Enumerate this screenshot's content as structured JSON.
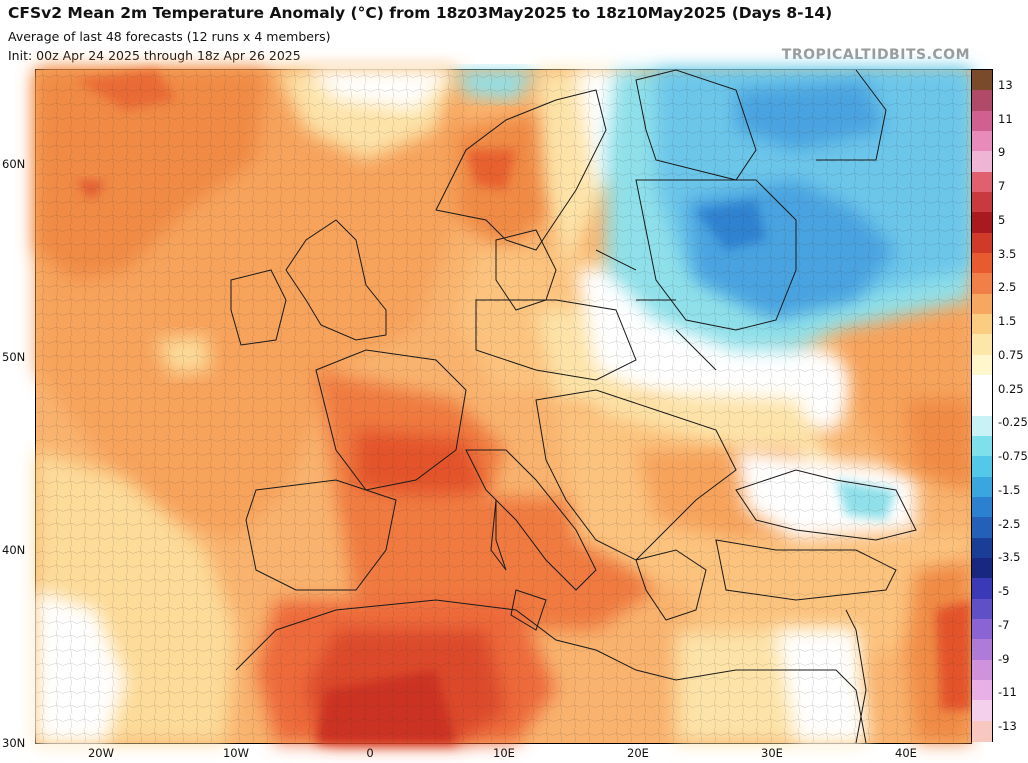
{
  "header": {
    "title": "CFSv2 Mean 2m Temperature Anomaly (°C) from 18z03May2025 to 18z10May2025 (Days 8-14)",
    "subtitle1": "Average of last 48 forecasts (12 runs x 4 members)",
    "subtitle2": "Init: 00z Apr 24 2025 through 18z Apr 26 2025",
    "brand": "TROPICALTIDBITS.COM"
  },
  "map": {
    "lat_labels": [
      "60N",
      "50N",
      "40N",
      "30N"
    ],
    "lon_labels": [
      "20W",
      "10W",
      "0",
      "10E",
      "20E",
      "30E",
      "40E"
    ]
  },
  "colorbar": {
    "labels": [
      "13",
      "11",
      "9",
      "7",
      "5",
      "3.5",
      "2.5",
      "1.5",
      "0.75",
      "0.25",
      "-0.25",
      "-0.75",
      "-1.5",
      "-2.5",
      "-3.5",
      "-5",
      "-7",
      "-9",
      "-11",
      "-13"
    ],
    "colors": [
      "#7a4a2a",
      "#b04a68",
      "#d06090",
      "#e88aba",
      "#f0b4d4",
      "#e06070",
      "#c83a40",
      "#a81a20",
      "#d03a28",
      "#e85a30",
      "#f08048",
      "#f7a860",
      "#fbcd82",
      "#fde7a8",
      "#fff6cc",
      "#ffffff",
      "#ffffff",
      "#c8f2f5",
      "#7ee0ea",
      "#54c8e8",
      "#3aa6e0",
      "#2c80d0",
      "#2460b8",
      "#1a3e98",
      "#182880",
      "#3a3ab8",
      "#6050c8",
      "#8a64d4",
      "#b07ad8",
      "#d092dc",
      "#e8b0e6",
      "#f4d0ec",
      "#f8c8c0"
    ]
  }
}
